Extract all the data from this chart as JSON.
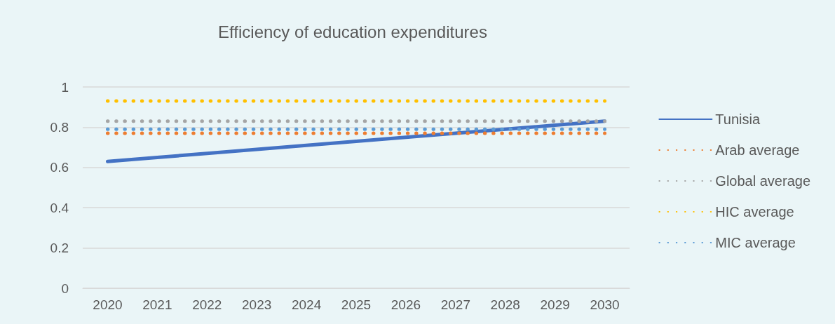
{
  "chart_data": {
    "type": "line",
    "title": "Efficiency of education expenditures",
    "categories": [
      "2020",
      "2021",
      "2022",
      "2023",
      "2024",
      "2025",
      "2026",
      "2027",
      "2028",
      "2029",
      "2030"
    ],
    "series": [
      {
        "name": "Tunisia",
        "color": "#4472c4",
        "line_style": "solid",
        "values": [
          0.63,
          0.65,
          0.67,
          0.69,
          0.71,
          0.73,
          0.75,
          0.77,
          0.79,
          0.81,
          0.83
        ]
      },
      {
        "name": "Arab average",
        "color": "#ed7d31",
        "line_style": "dotted",
        "values": [
          0.77,
          0.77,
          0.77,
          0.77,
          0.77,
          0.77,
          0.77,
          0.77,
          0.77,
          0.77,
          0.77
        ]
      },
      {
        "name": "Global average",
        "color": "#a5a5a5",
        "line_style": "dotted",
        "values": [
          0.83,
          0.83,
          0.83,
          0.83,
          0.83,
          0.83,
          0.83,
          0.83,
          0.83,
          0.83,
          0.83
        ]
      },
      {
        "name": "HIC average",
        "color": "#ffc000",
        "line_style": "dotted",
        "values": [
          0.93,
          0.93,
          0.93,
          0.93,
          0.93,
          0.93,
          0.93,
          0.93,
          0.93,
          0.93,
          0.93
        ]
      },
      {
        "name": "MIC average",
        "color": "#5b9bd5",
        "line_style": "dotted",
        "values": [
          0.79,
          0.79,
          0.79,
          0.79,
          0.79,
          0.79,
          0.79,
          0.79,
          0.79,
          0.79,
          0.79
        ]
      }
    ],
    "ylim": [
      0,
      1
    ],
    "yticks": [
      0,
      0.2,
      0.4,
      0.6,
      0.8,
      1
    ],
    "grid": "y",
    "legend": "right",
    "marker": "none"
  }
}
